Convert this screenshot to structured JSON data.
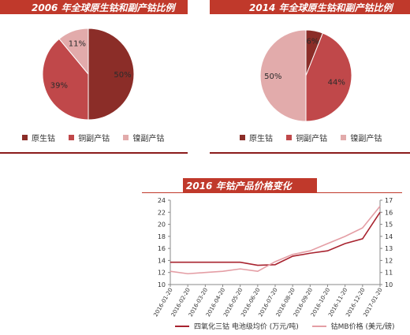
{
  "chart_data": [
    {
      "type": "pie",
      "title": "2006 年全球原生钴和副产钴比例",
      "categories": [
        "原生钴",
        "铜副产钴",
        "镍副产钴"
      ],
      "values": [
        50,
        39,
        11
      ],
      "value_labels": [
        "50%",
        "39%",
        "11%"
      ],
      "colors": [
        "#8b2d28",
        "#c0484a",
        "#e2abab"
      ],
      "legend_placement": "bottom"
    },
    {
      "type": "pie",
      "title": "2014 年全球原生钴和副产钴比例",
      "categories": [
        "原生钴",
        "铜副产钴",
        "镍副产钴"
      ],
      "values": [
        6,
        44,
        50
      ],
      "value_labels": [
        "6%",
        "44%",
        "50%"
      ],
      "colors": [
        "#8b2d28",
        "#c0484a",
        "#e2abab"
      ],
      "legend_placement": "bottom"
    },
    {
      "type": "line",
      "title": "2016 年钴产品价格变化",
      "x": [
        "2016-01-20",
        "2016-02-20",
        "2016-03-20",
        "2016-04-20",
        "2016-05-20",
        "2016-06-20",
        "2016-07-20",
        "2016-08-20",
        "2016-09-20",
        "2016-10-20",
        "2016-11-20",
        "2016-12-20",
        "2017-01-20"
      ],
      "x_tick_labels": [
        "2016-01-20",
        "2016-02-20",
        "2016-03-20",
        "2016-04-20",
        "2016-05-20",
        "2016-06-20",
        "2016-07-20",
        "2016-08-20",
        "2016-09-20",
        "2016-10-20",
        "2016-11-20",
        "2016-12-20",
        "2017-01-20"
      ],
      "y_left_ticks": [
        "10",
        "12",
        "14",
        "16",
        "18",
        "20",
        "22",
        "24"
      ],
      "y_left_range": [
        10,
        24
      ],
      "y_right_ticks": [
        "10",
        "11",
        "12",
        "13",
        "14",
        "15",
        "16",
        "17"
      ],
      "y_right_range": [
        10,
        17
      ],
      "legend_placement": "bottom",
      "series": [
        {
          "name": "四氧化三钴 电池级均价 (万元/吨)",
          "axis": "left",
          "color": "#a8232f",
          "values": [
            13.7,
            13.7,
            13.7,
            13.7,
            13.7,
            13.2,
            13.3,
            14.7,
            15.2,
            15.6,
            16.8,
            17.6,
            22.0
          ]
        },
        {
          "name": "钴MB价格 (美元/磅)",
          "axis": "right",
          "color": "#e49ea5",
          "values": [
            11.1,
            10.9,
            11.0,
            11.1,
            11.3,
            11.1,
            11.9,
            12.5,
            12.8,
            13.4,
            14.0,
            14.7,
            16.5
          ]
        }
      ]
    }
  ]
}
